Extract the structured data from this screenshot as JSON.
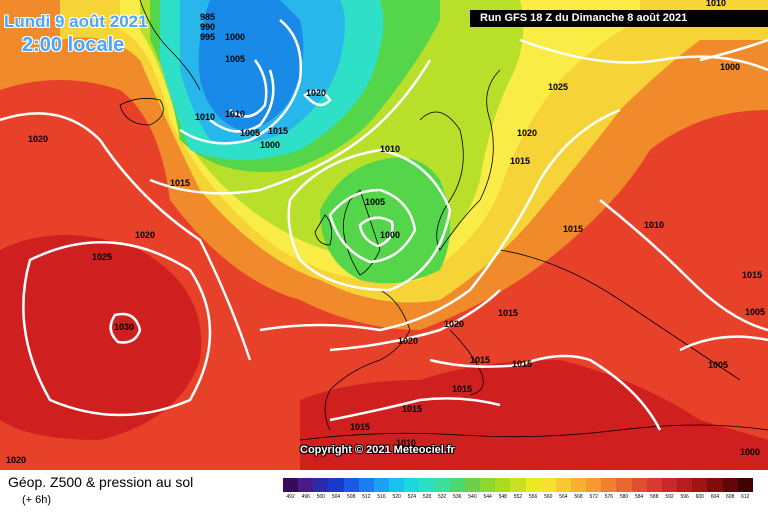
{
  "header": {
    "date": "Lundi 9 août 2021",
    "time": "2:00 locale"
  },
  "run_banner": "Run GFS 18 Z du Dimanche 8 août 2021",
  "copyright": "Copyright © 2021 Meteociel.fr",
  "footer": {
    "title": "Géop. Z500 & pression au sol",
    "subtitle": "(+ 6h)"
  },
  "legend": {
    "values": [
      "492",
      "496",
      "500",
      "504",
      "508",
      "512",
      "516",
      "520",
      "524",
      "528",
      "532",
      "536",
      "540",
      "544",
      "548",
      "552",
      "556",
      "560",
      "564",
      "568",
      "572",
      "576",
      "580",
      "584",
      "588",
      "592",
      "596",
      "600",
      "604",
      "608",
      "612"
    ],
    "colors": [
      "#3a0a5a",
      "#4a1a8a",
      "#2a2aaa",
      "#1a3acc",
      "#1a5ae6",
      "#1a7ef0",
      "#1aa0f4",
      "#1ac0f0",
      "#1ad8e0",
      "#2ae0c0",
      "#3ae09a",
      "#4ad870",
      "#6ad04a",
      "#8ad830",
      "#aadc20",
      "#cae020",
      "#eaea20",
      "#f8e030",
      "#f8c830",
      "#f8b030",
      "#f89830",
      "#f08030",
      "#e86830",
      "#e05030",
      "#d83830",
      "#c82828",
      "#b81c1c",
      "#a01414",
      "#800c0c",
      "#600808",
      "#400404"
    ]
  },
  "map": {
    "colors": {
      "ocean_red": "#e8412a",
      "deep_red": "#cf1f1f",
      "orange": "#f08a2a",
      "yellow": "#f6d437",
      "light_yellow": "#f9ec46",
      "lime": "#b8df2a",
      "green": "#54d54a",
      "cyan": "#2ee0c8",
      "light_blue": "#28b7ea",
      "blue": "#1a8ae8",
      "coast": "#000000",
      "isobar": "#ffffff"
    },
    "isobar_labels": [
      "985",
      "990",
      "995",
      "1000",
      "1005",
      "1010",
      "1010",
      "1005",
      "1000",
      "1020",
      "1015",
      "1020",
      "1020",
      "1025",
      "1030",
      "1010",
      "1005",
      "1000",
      "1020",
      "1015",
      "1025",
      "1020",
      "1015",
      "1015",
      "1010",
      "1015",
      "1015",
      "1020",
      "1015",
      "1015",
      "1015",
      "1010",
      "1005",
      "1015",
      "1000",
      "1000",
      "1005",
      "1010",
      "1020",
      "1015"
    ]
  }
}
